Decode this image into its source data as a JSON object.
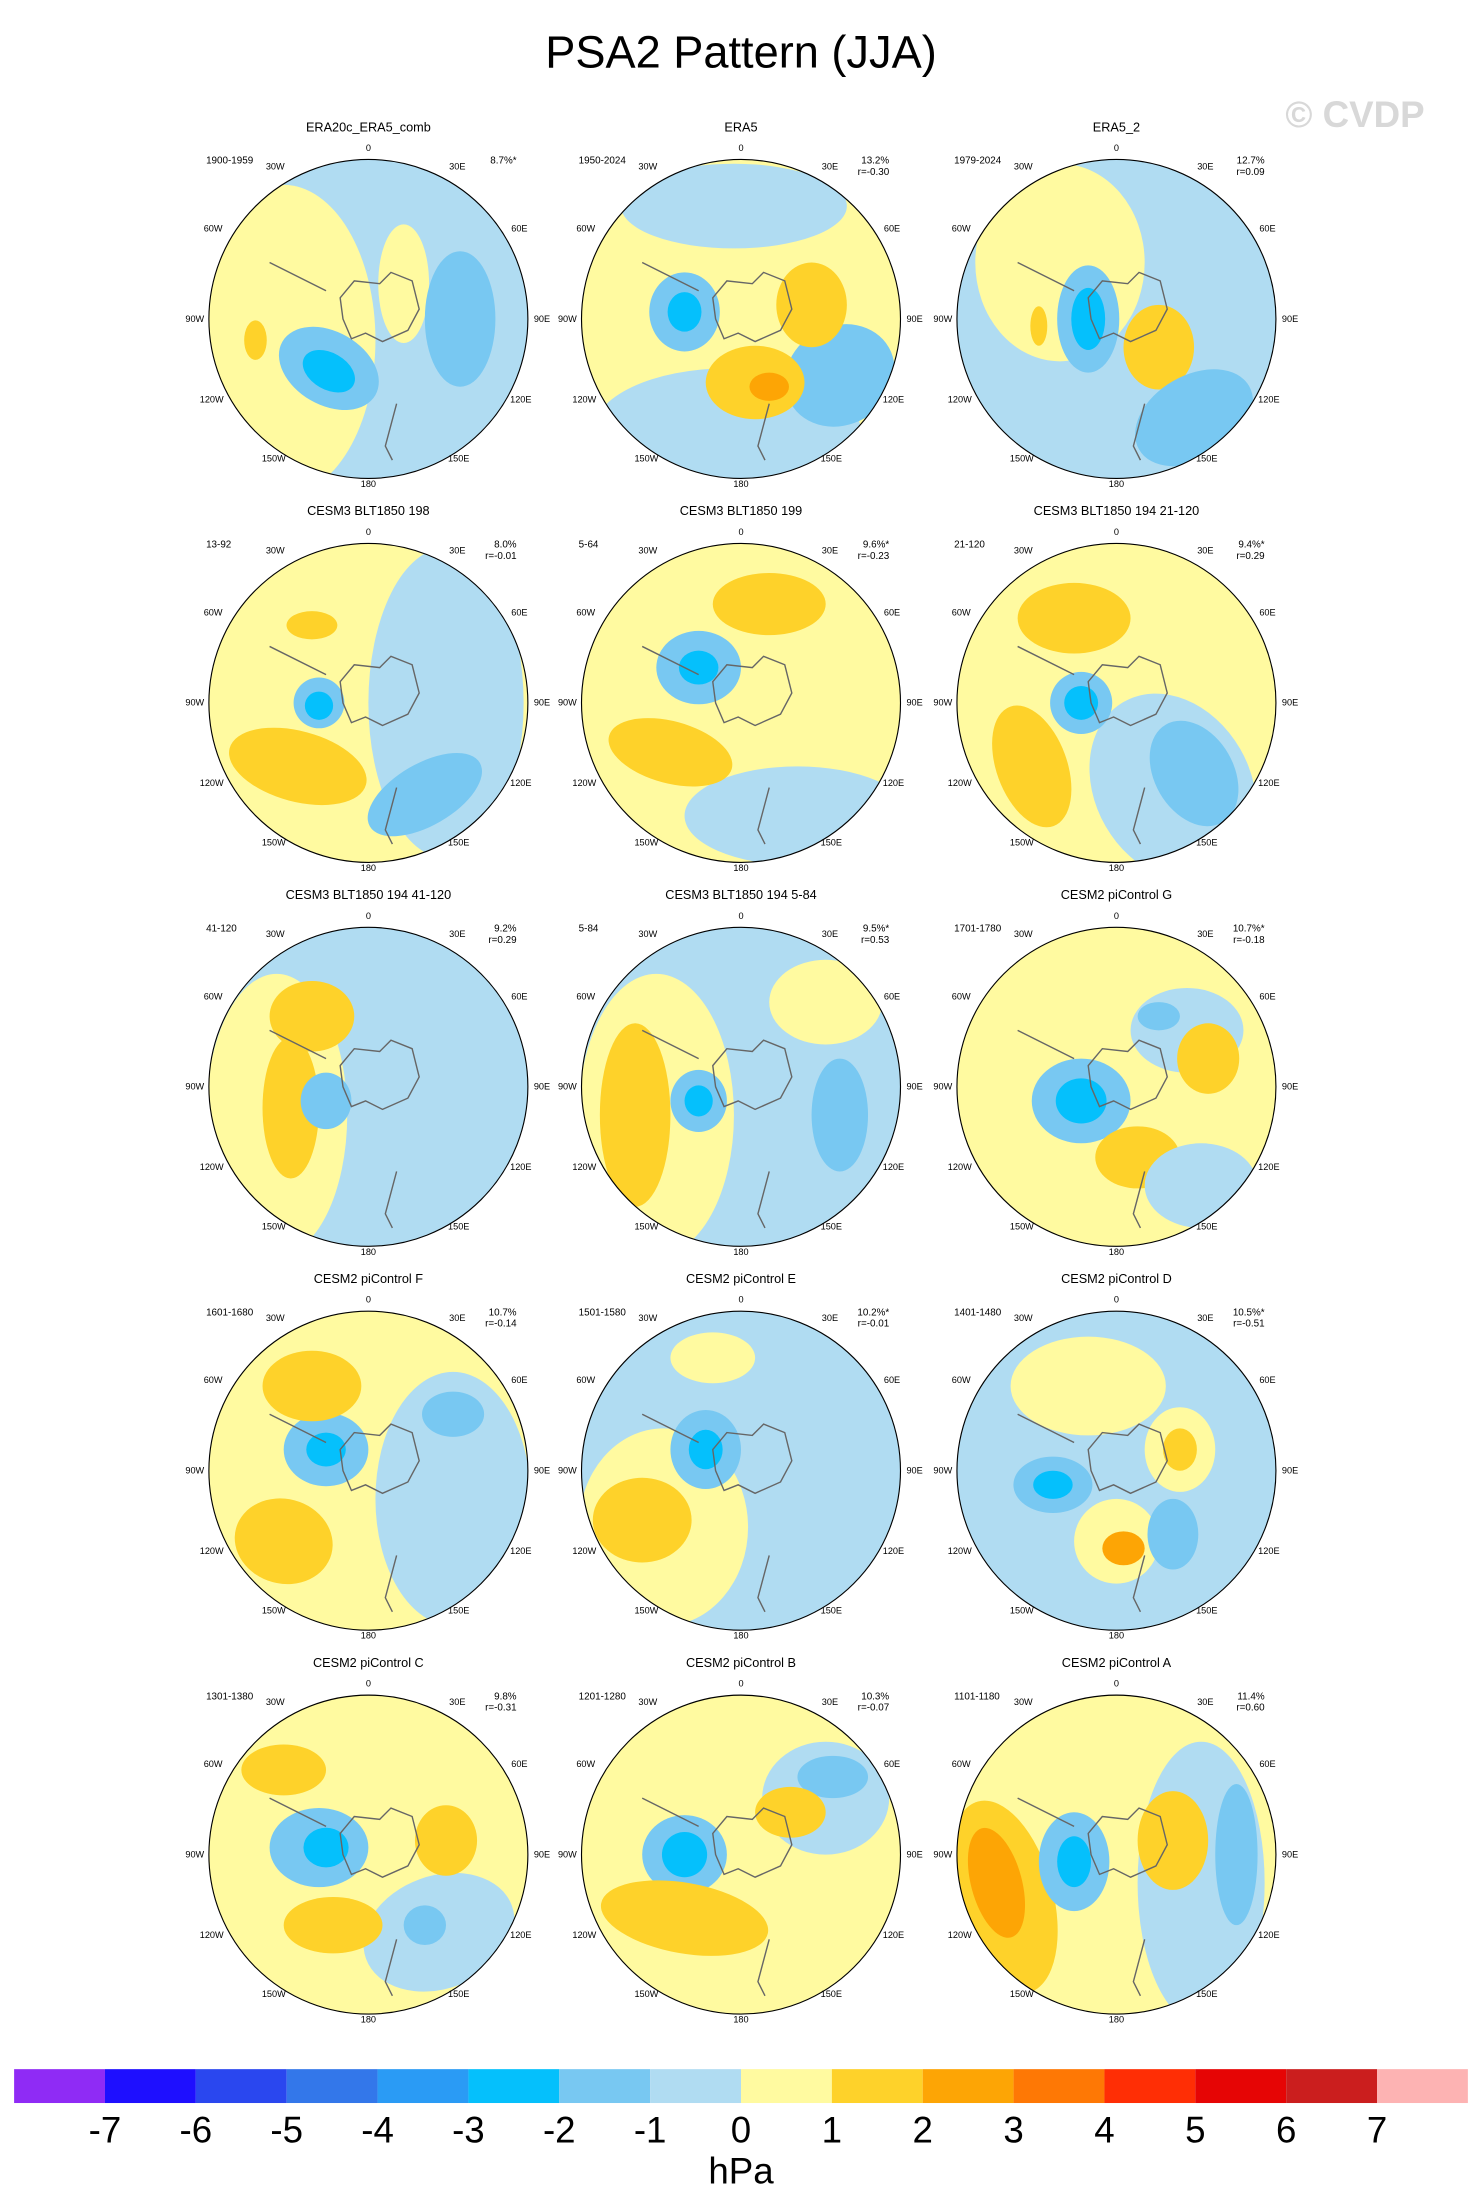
{
  "title": "PSA2 Pattern (JJA)",
  "watermark": "© CVDP",
  "longitudes": [
    "0",
    "30E",
    "60E",
    "90E",
    "120E",
    "150E",
    "180",
    "150W",
    "120W",
    "90W",
    "60W",
    "30W"
  ],
  "panels": [
    {
      "title": "ERA20c_ERA5_comb",
      "period": "1900-1959",
      "pct": "8.7%*"
    },
    {
      "title": "ERA5",
      "period": "1950-2024",
      "pct": "13.2%",
      "r": "r=-0.30"
    },
    {
      "title": "ERA5_2",
      "period": "1979-2024",
      "pct": "12.7%",
      "r": "r=0.09"
    },
    {
      "title": "CESM3 BLT1850 198",
      "period": "13-92",
      "pct": "8.0%",
      "r": "r=-0.01"
    },
    {
      "title": "CESM3 BLT1850 199",
      "period": "5-64",
      "pct": "9.6%*",
      "r": "r=-0.23"
    },
    {
      "title": "CESM3 BLT1850 194 21-120",
      "period": "21-120",
      "pct": "9.4%*",
      "r": "r=0.29"
    },
    {
      "title": "CESM3 BLT1850 194 41-120",
      "period": "41-120",
      "pct": "9.2%",
      "r": "r=0.29"
    },
    {
      "title": "CESM3 BLT1850 194 5-84",
      "period": "5-84",
      "pct": "9.5%*",
      "r": "r=0.53"
    },
    {
      "title": "CESM2 piControl G",
      "period": "1701-1780",
      "pct": "10.7%*",
      "r": "r=-0.18"
    },
    {
      "title": "CESM2 piControl F",
      "period": "1601-1680",
      "pct": "10.7%",
      "r": "r=-0.14"
    },
    {
      "title": "CESM2 piControl E",
      "period": "1501-1580",
      "pct": "10.2%*",
      "r": "r=-0.01"
    },
    {
      "title": "CESM2 piControl D",
      "period": "1401-1480",
      "pct": "10.5%*",
      "r": "r=-0.51"
    },
    {
      "title": "CESM2 piControl C",
      "period": "1301-1380",
      "pct": "9.8%",
      "r": "r=-0.31"
    },
    {
      "title": "CESM2 piControl B",
      "period": "1201-1280",
      "pct": "10.3%",
      "r": "r=-0.07"
    },
    {
      "title": "CESM2 piControl A",
      "period": "1101-1180",
      "pct": "11.4%",
      "r": "r=0.60"
    }
  ],
  "colorbar": {
    "ticks": [
      -7,
      -6,
      -5,
      -4,
      -3,
      -2,
      -1,
      0,
      1,
      2,
      3,
      4,
      5,
      6,
      7
    ],
    "units": "hPa",
    "colors": [
      "#8f2bf5",
      "#1e0fff",
      "#2a47ef",
      "#3377ea",
      "#2a9bf5",
      "#05c0fc",
      "#78c8f2",
      "#b0dcf2",
      "#fffaa0",
      "#fed22a",
      "#fda505",
      "#fe7805",
      "#ff2e05",
      "#e60505",
      "#cb1e1e",
      "#fdb3b3"
    ]
  }
}
